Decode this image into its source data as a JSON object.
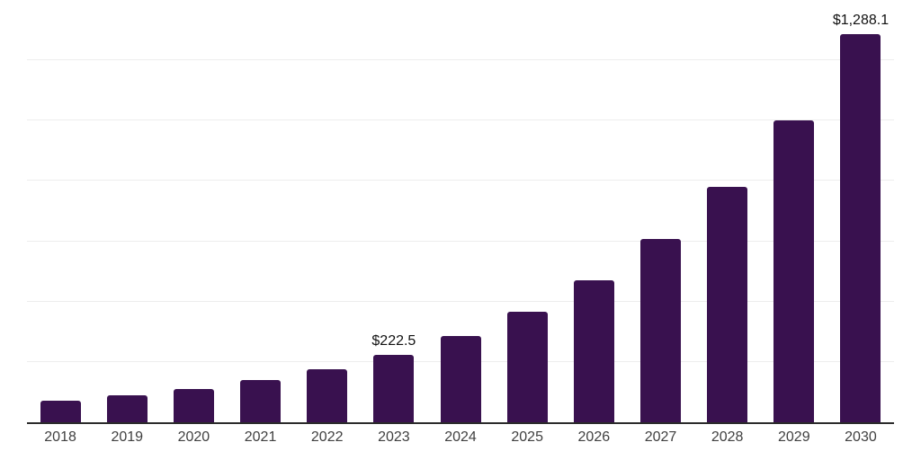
{
  "chart_data": {
    "type": "bar",
    "title": "",
    "xlabel": "",
    "ylabel": "",
    "categories": [
      "2018",
      "2019",
      "2020",
      "2021",
      "2022",
      "2023",
      "2024",
      "2025",
      "2026",
      "2027",
      "2028",
      "2029",
      "2030"
    ],
    "values": [
      71,
      88,
      111,
      141,
      177,
      222.5,
      285.9,
      367.4,
      472.1,
      606.7,
      779.6,
      1001.9,
      1288.1
    ],
    "value_labels": [
      "",
      "",
      "",
      "",
      "",
      "$222.5",
      "",
      "",
      "",
      "",
      "",
      "",
      "$1,288.1"
    ],
    "ylim": [
      0,
      1400
    ],
    "gridline_step": 200,
    "grid": true,
    "legend_position": "none",
    "bar_color": "#39114F",
    "gridline_color": "#ededed",
    "axis_line_color": "#2b2b2b",
    "tick_label_color": "#404040",
    "data_label_color": "#111111",
    "background_color": "#ffffff"
  }
}
